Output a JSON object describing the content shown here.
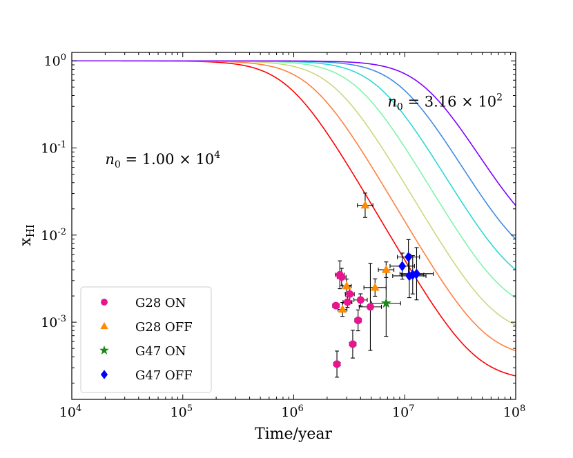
{
  "chart_data": {
    "type": "scatter",
    "title": "",
    "xlabel": "Time/year",
    "ylabel": "x_HI",
    "xscale": "log",
    "yscale": "log",
    "xlim": [
      10000,
      100000000
    ],
    "ylim": [
      0.00013,
      1.25
    ],
    "x_tick_labels": [
      {
        "base": "10",
        "exp": "4"
      },
      {
        "base": "10",
        "exp": "5"
      },
      {
        "base": "10",
        "exp": "6"
      },
      {
        "base": "10",
        "exp": "7"
      },
      {
        "base": "10",
        "exp": "8"
      }
    ],
    "y_tick_labels": [
      {
        "base": "10",
        "exp": "-3"
      },
      {
        "base": "10",
        "exp": "-2"
      },
      {
        "base": "10",
        "exp": "-1"
      },
      {
        "base": "10",
        "exp": "0"
      }
    ],
    "grid": false,
    "legend_position": "lower-left",
    "annotations": [
      {
        "text_pre": "n",
        "text_sub": "0",
        "text_mid": " = 3.16 × 10",
        "text_sup": "2",
        "x": 7000000,
        "y": 0.3
      },
      {
        "text_pre": "n",
        "text_sub": "0",
        "text_mid": " = 1.00 × 10",
        "text_sup": "4",
        "x": 20000,
        "y": 0.065
      }
    ],
    "model_curves": [
      {
        "color": "#ff0000",
        "t_half": 900000,
        "floor": 0.00021
      },
      {
        "color": "#ff7f3f",
        "t_half": 1450000,
        "floor": 0.00038
      },
      {
        "color": "#cbd87b",
        "t_half": 2300000,
        "floor": 0.00068
      },
      {
        "color": "#7ff5a8",
        "t_half": 3700000,
        "floor": 0.0012
      },
      {
        "color": "#2ad8d8",
        "t_half": 5800000,
        "floor": 0.0021
      },
      {
        "color": "#3f8ae6",
        "t_half": 9200000,
        "floor": 0.0038
      },
      {
        "color": "#7f00ff",
        "t_half": 15000000,
        "floor": 0.0068
      }
    ],
    "series": [
      {
        "name": "G28 ON",
        "marker": "circle",
        "color": "#e8158e",
        "points": [
          {
            "x": 2400000,
            "y": 0.00155,
            "xerr": 0.03,
            "yerr": 0.03
          },
          {
            "x": 2450000,
            "y": 0.00033,
            "xerr": 0.03,
            "yerr": 0.15
          },
          {
            "x": 2600000,
            "y": 0.0035,
            "xerr": 0.04,
            "yerr": 0.16
          },
          {
            "x": 2700000,
            "y": 0.0033,
            "xerr": 0.04,
            "yerr": 0.1
          },
          {
            "x": 3050000,
            "y": 0.0017,
            "xerr": 0.04,
            "yerr": 0.06
          },
          {
            "x": 3200000,
            "y": 0.0021,
            "xerr": 0.04,
            "yerr": 0.1
          },
          {
            "x": 3400000,
            "y": 0.00056,
            "xerr": 0.03,
            "yerr": 0.16
          },
          {
            "x": 3800000,
            "y": 0.00105,
            "xerr": 0.03,
            "yerr": 0.12
          },
          {
            "x": 4000000,
            "y": 0.0018,
            "xerr": 0.06,
            "yerr": 0.07
          },
          {
            "x": 4900000,
            "y": 0.0015,
            "xerr": 0.1,
            "yerr": 0.5
          }
        ]
      },
      {
        "name": "G28 OFF",
        "marker": "triangle",
        "color": "#ff8c00",
        "points": [
          {
            "x": 2750000,
            "y": 0.0014,
            "xerr": 0.04,
            "yerr": 0.08
          },
          {
            "x": 3000000,
            "y": 0.0026,
            "xerr": 0.04,
            "yerr": 0.08
          },
          {
            "x": 4400000,
            "y": 0.022,
            "xerr": 0.07,
            "yerr": 0.14
          },
          {
            "x": 5400000,
            "y": 0.0025,
            "xerr": 0.1,
            "yerr": 0.1
          },
          {
            "x": 6800000,
            "y": 0.004,
            "xerr": 0.07,
            "yerr": 0.09
          }
        ]
      },
      {
        "name": "G47 ON",
        "marker": "star",
        "color": "#1a8a1a",
        "points": [
          {
            "x": 6800000,
            "y": 0.00165,
            "xerr": 0.13,
            "yerr": 0.38
          }
        ]
      },
      {
        "name": "G47 OFF",
        "marker": "diamond",
        "color": "#0000ff",
        "points": [
          {
            "x": 9500000,
            "y": 0.0044,
            "xerr": 0.11,
            "yerr": 0.15
          },
          {
            "x": 10800000,
            "y": 0.0056,
            "xerr": 0.1,
            "yerr": 0.2
          },
          {
            "x": 11000000,
            "y": 0.0034,
            "xerr": 0.15,
            "yerr": 0.25
          },
          {
            "x": 11800000,
            "y": 0.0035,
            "xerr": 0.1,
            "yerr": 0.22
          },
          {
            "x": 12800000,
            "y": 0.0036,
            "xerr": 0.15,
            "yerr": 0.3
          }
        ]
      }
    ]
  }
}
